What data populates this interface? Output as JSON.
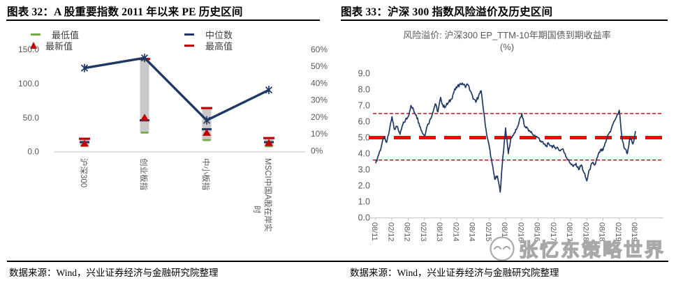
{
  "colors": {
    "navy": "#1F3864",
    "dark_red": "#C00000",
    "bright_red": "#FF0000",
    "green": "#70AD47",
    "bar_gray": "#C9C9C9",
    "axis_text": "#595959",
    "axis_line": "#BFBFBF"
  },
  "watermark": {
    "text": "张忆东策略世界"
  },
  "left_panel": {
    "title": "图表 32：A 股重要指数 2011 年以来 PE 历史区间",
    "source": "数据来源：Wind，兴业证券经济与金融研究院整理",
    "legend": [
      {
        "label": "最低值",
        "marker": "dash",
        "color": "#70AD47"
      },
      {
        "label": "最新值",
        "marker": "triangle",
        "color": "#C00000"
      },
      {
        "label": "中位数",
        "marker": "dash",
        "color": "#1F3864"
      },
      {
        "label": "最高值",
        "marker": "dash",
        "color": "#C00000"
      }
    ],
    "chart_data": {
      "type": "stock-range",
      "categories": [
        "沪深300",
        "创业板指",
        "中小板指",
        "MSCI中国A股在岸实时"
      ],
      "series": [
        {
          "name": "最高值",
          "role": "high",
          "values": [
            19,
            136,
            64,
            20
          ]
        },
        {
          "name": "最低值",
          "role": "low",
          "values": [
            9,
            28,
            17,
            8
          ]
        },
        {
          "name": "中位数",
          "role": "median",
          "values": [
            14,
            46,
            33,
            14
          ]
        },
        {
          "name": "最新值",
          "role": "latest",
          "values": [
            12,
            50,
            28,
            13
          ]
        },
        {
          "name": "",
          "role": "percentile_right_axis",
          "axis": "right",
          "values": [
            49,
            55,
            18,
            36
          ]
        }
      ],
      "left_axis": {
        "min": 0,
        "max": 150,
        "tick_values": [
          0,
          50,
          100,
          150
        ],
        "tick_labels": [
          "0.0",
          "50.0",
          "100.0",
          "150.0"
        ]
      },
      "right_axis": {
        "min": 0,
        "max": 60,
        "tick_values": [
          0,
          10,
          20,
          30,
          40,
          50,
          60
        ],
        "tick_labels": [
          "0%",
          "10%",
          "20%",
          "30%",
          "40%",
          "50%",
          "60%"
        ]
      },
      "grid": false,
      "legend_position": "top"
    }
  },
  "right_panel": {
    "title": "图表 33：沪深 300 指数风险溢价及历史区间",
    "subtitle_line1": "风险溢价: 沪深300 EP_TTM-10年期国债到期收益率",
    "subtitle_line2": "(%)",
    "source": "数据来源：Wind，兴业证券经济与金融研究院整理",
    "chart_data": {
      "type": "line",
      "title": "风险溢价: 沪深300 EP_TTM-10年期国债到期收益率 (%)",
      "frequency": "monthly",
      "x_start_label": "08/11",
      "x_tick_labels": [
        "08/11",
        "02/12",
        "08/12",
        "02/13",
        "08/13",
        "02/14",
        "08/14",
        "02/15",
        "08/15",
        "02/16",
        "08/16",
        "02/17",
        "08/17",
        "02/18",
        "08/18",
        "02/19",
        "08/19"
      ],
      "values": [
        3.4,
        3.9,
        4.4,
        5.0,
        4.7,
        5.4,
        6.3,
        5.5,
        5.7,
        5.2,
        5.8,
        6.1,
        6.3,
        7.0,
        6.7,
        6.4,
        5.9,
        5.4,
        5.1,
        5.7,
        6.1,
        6.5,
        7.1,
        6.6,
        7.5,
        6.9,
        7.0,
        7.2,
        7.4,
        7.9,
        8.1,
        8.3,
        8.4,
        8.2,
        8.3,
        7.9,
        7.4,
        7.2,
        7.6,
        7.9,
        6.5,
        5.2,
        4.4,
        3.4,
        2.4,
        2.6,
        1.6,
        3.8,
        5.6,
        4.0,
        5.0,
        5.2,
        5.5,
        6.0,
        6.5,
        5.7,
        5.6,
        5.4,
        5.2,
        5.1,
        5.0,
        4.8,
        4.6,
        4.5,
        4.6,
        4.5,
        4.4,
        4.4,
        4.2,
        4.3,
        4.0,
        3.6,
        3.4,
        3.2,
        3.4,
        3.0,
        3.3,
        2.8,
        2.3,
        3.0,
        3.4,
        3.3,
        3.8,
        4.2,
        4.2,
        4.7,
        5.2,
        5.5,
        6.0,
        6.3,
        6.7,
        5.0,
        4.3,
        4.0,
        5.0,
        4.6,
        5.4
      ],
      "y_axis": {
        "min": 0,
        "max": 9,
        "step": 1,
        "tick_labels": [
          "0.0",
          "1.0",
          "2.0",
          "3.0",
          "4.0",
          "5.0",
          "6.0",
          "7.0",
          "8.0",
          "9.0"
        ]
      },
      "reference_lines": [
        {
          "value": 6.5,
          "style": "dashed-thin",
          "color": "#C00000"
        },
        {
          "value": 5.0,
          "style": "dashed-thick",
          "color": "#FF0000"
        },
        {
          "value": 3.6,
          "style": "dashed-thin",
          "color": "#C00000"
        }
      ],
      "grid": false,
      "legend_position": "none"
    }
  }
}
